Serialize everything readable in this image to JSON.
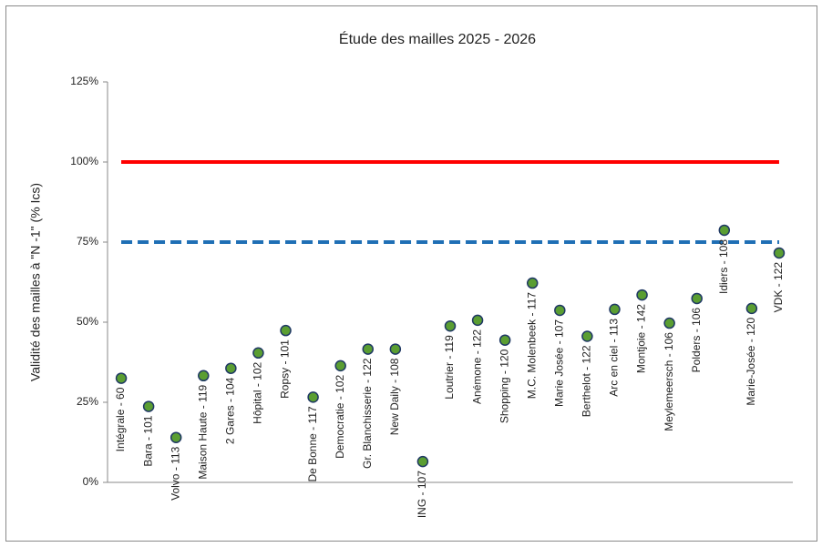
{
  "chart_data": {
    "type": "scatter",
    "title": "Étude des mailles 2025 - 2026",
    "y_label": "Validité des mailles à \"N -1\" (% Ics)",
    "categories": [
      "Intégrale - 60",
      "Bara - 101",
      "Volvo - 113",
      "Maison Haute - 119",
      "2 Gares - 104",
      "Hôpital - 102",
      "Ropsy - 101",
      "De Bonne - 117",
      "Democratie - 102",
      "Gr. Blanchisserie - 122",
      "New Daily - 108",
      "ING - 107",
      "Loutrier - 119",
      "Anémone - 122",
      "Shopping - 120",
      "M.C. Molenbeek - 117",
      "Marie Josée - 107",
      "Berthelot - 122",
      "Arc en ciel - 113",
      "Montjoie - 142",
      "Meylemeersch - 106",
      "Polders - 106",
      "Idiers - 108",
      "Marie-Josée - 120",
      "VDK - 122"
    ],
    "values": [
      32.5,
      23.7,
      14,
      33.3,
      35.6,
      40.4,
      47.4,
      26.6,
      36.4,
      41.6,
      41.6,
      6.5,
      48.8,
      50.6,
      44.4,
      62.2,
      53.7,
      45.6,
      54,
      58.5,
      49.7,
      57.4,
      78.7,
      54.3,
      71.6
    ],
    "color": "#5a9e32",
    "edge_color": "#1f3864",
    "reference_lines": [
      {
        "value": 100,
        "color": "#ff0000",
        "dashed": false
      },
      {
        "value": 75,
        "color": "#1f6fb5",
        "dashed": true
      }
    ],
    "ylim": [
      0,
      125
    ],
    "yticks": [
      {
        "value": 0,
        "label": "0%"
      },
      {
        "value": 25,
        "label": "25%"
      },
      {
        "value": 50,
        "label": "50%"
      },
      {
        "value": 75,
        "label": "75%"
      },
      {
        "value": 100,
        "label": "100%"
      },
      {
        "value": 125,
        "label": "125%"
      }
    ]
  }
}
